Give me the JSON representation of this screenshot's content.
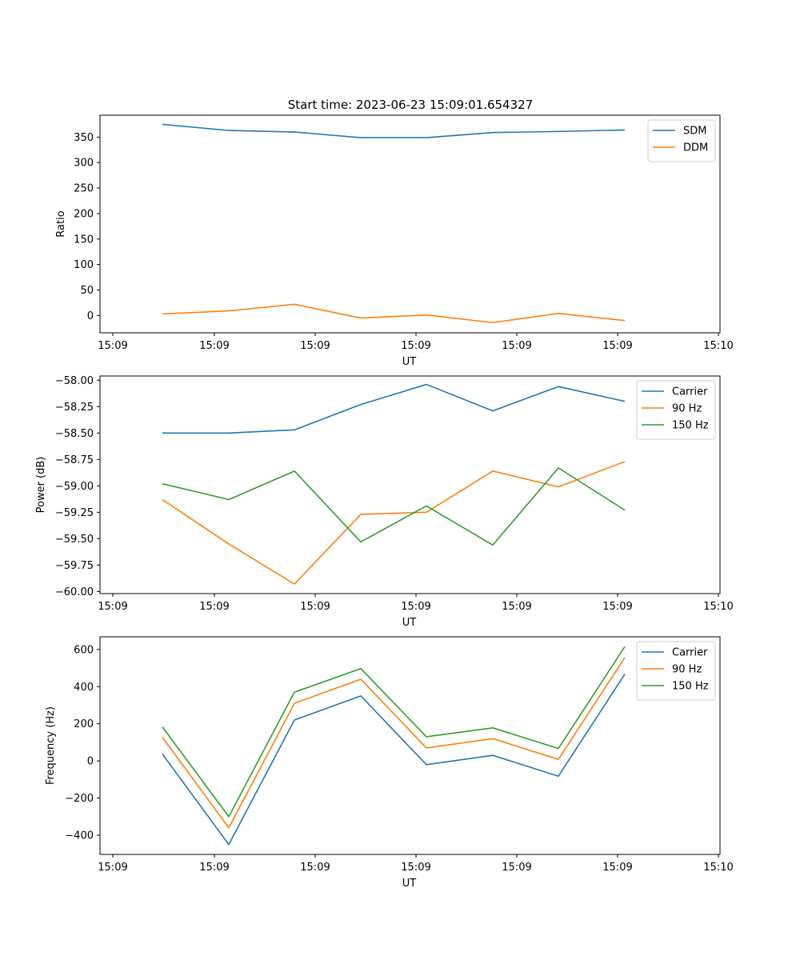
{
  "figure_title": "Start time: 2023-06-23 15:09:01.654327",
  "colors": {
    "blue": "#1f77b4",
    "orange": "#ff7f0e",
    "green": "#2ca02c"
  },
  "chart_data": [
    {
      "type": "line",
      "xlabel": "UT",
      "ylabel": "Ratio",
      "x_tick_labels": [
        "15:09",
        "15:09",
        "15:09",
        "15:09",
        "15:09",
        "15:09",
        "15:10"
      ],
      "yticks": [
        0,
        50,
        100,
        150,
        200,
        250,
        300,
        350
      ],
      "ytick_labels": [
        "0",
        "50",
        "100",
        "150",
        "200",
        "250",
        "300",
        "350"
      ],
      "ylim": [
        -34,
        393
      ],
      "legend_position": "top-right",
      "grid": false,
      "series": [
        {
          "name": "SDM",
          "color": "#1f77b4",
          "values": [
            375,
            363,
            360,
            349,
            349,
            359,
            361,
            364
          ]
        },
        {
          "name": "DDM",
          "color": "#ff7f0e",
          "values": [
            3,
            9,
            22,
            -5,
            1,
            -14,
            4,
            -10
          ]
        }
      ]
    },
    {
      "type": "line",
      "xlabel": "UT",
      "ylabel": "Power (dB)",
      "x_tick_labels": [
        "15:09",
        "15:09",
        "15:09",
        "15:09",
        "15:09",
        "15:09",
        "15:10"
      ],
      "yticks": [
        -60.0,
        -59.75,
        -59.5,
        -59.25,
        -59.0,
        -58.75,
        -58.5,
        -58.25,
        -58.0
      ],
      "ytick_labels": [
        "−60.00",
        "−59.75",
        "−59.50",
        "−59.25",
        "−59.00",
        "−58.75",
        "−58.50",
        "−58.25",
        "−58.00"
      ],
      "ylim": [
        -60.02,
        -57.96
      ],
      "legend_position": "top-right",
      "grid": false,
      "series": [
        {
          "name": "Carrier",
          "color": "#1f77b4",
          "values": [
            -58.5,
            -58.5,
            -58.47,
            -58.23,
            -58.04,
            -58.29,
            -58.06,
            -58.2
          ]
        },
        {
          "name": "90 Hz",
          "color": "#ff7f0e",
          "values": [
            -59.13,
            -59.55,
            -59.93,
            -59.27,
            -59.25,
            -58.86,
            -59.01,
            -58.77
          ]
        },
        {
          "name": "150 Hz",
          "color": "#2ca02c",
          "values": [
            -58.98,
            -59.13,
            -58.86,
            -59.53,
            -59.19,
            -59.56,
            -58.83,
            -59.23
          ]
        }
      ]
    },
    {
      "type": "line",
      "xlabel": "UT",
      "ylabel": "Frequency (Hz)",
      "x_tick_labels": [
        "15:09",
        "15:09",
        "15:09",
        "15:09",
        "15:09",
        "15:09",
        "15:10"
      ],
      "yticks": [
        -400,
        -200,
        0,
        200,
        400,
        600
      ],
      "ytick_labels": [
        "−400",
        "−200",
        "0",
        "200",
        "400",
        "600"
      ],
      "ylim": [
        -503,
        668
      ],
      "legend_position": "top-right",
      "grid": false,
      "series": [
        {
          "name": "Carrier",
          "color": "#1f77b4",
          "values": [
            37,
            -450,
            220,
            350,
            -20,
            30,
            -82,
            467
          ]
        },
        {
          "name": "90 Hz",
          "color": "#ff7f0e",
          "values": [
            127,
            -360,
            310,
            440,
            70,
            120,
            8,
            557
          ]
        },
        {
          "name": "150 Hz",
          "color": "#2ca02c",
          "values": [
            183,
            -300,
            370,
            497,
            130,
            178,
            67,
            615
          ]
        }
      ]
    }
  ]
}
